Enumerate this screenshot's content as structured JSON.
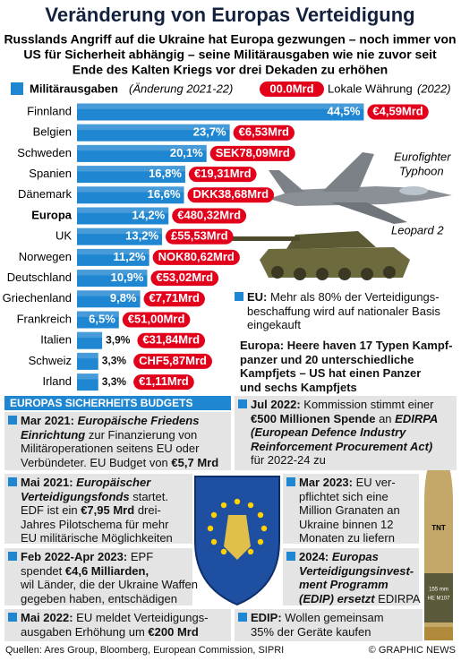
{
  "title": "Veränderung von Europas Verteidigung",
  "subtitle": [
    "Russlands Angriff auf die Ukraine hat Europa gezwungen – noch immer von",
    "US  für Sicherheit abhängig – seine Militärausgaben wie nie zuvor seit",
    "Ende des Kalten Kriegs vor drei Dekaden zu erhöhen"
  ],
  "chart_data": {
    "type": "bar",
    "orientation": "horizontal",
    "color": "#1f86d1",
    "highlight_color": "#e3001b",
    "legend": {
      "label": "Militärausgaben",
      "note": "(Änderung 2021-22)",
      "currency_sample": "00.0Mrd",
      "currency_label": "Lokale Währung",
      "currency_note": "(2022)"
    },
    "categories": [
      "Finnland",
      "Belgien",
      "Schweden",
      "Spanien",
      "Dänemark",
      "Europa",
      "UK",
      "Norwegen",
      "Deutschland",
      "Griechenland",
      "Frankreich",
      "Italien",
      "Schweiz",
      "Irland"
    ],
    "values": [
      44.5,
      23.7,
      20.1,
      16.8,
      16.6,
      14.2,
      13.2,
      11.2,
      10.9,
      9.8,
      6.5,
      3.9,
      3.3,
      3.3
    ],
    "value_labels": [
      "44,5%",
      "23,7%",
      "20,1%",
      "16,8%",
      "16,6%",
      "14,2%",
      "13,2%",
      "11,2%",
      "10,9%",
      "9,8%",
      "6,5%",
      "3,9%",
      "3,3%",
      "3,3%"
    ],
    "local_currency": [
      "€4,59Mrd",
      "€6,53Mrd",
      "SEK78,09Mrd",
      "€19,31Mrd",
      "DKK38,68Mrd",
      "€480,32Mrd",
      "£55,53Mrd",
      "NOK80,62Mrd",
      "€53,02Mrd",
      "€7,71Mrd",
      "€51,00Mrd",
      "€31,84Mrd",
      "CHF5,87Mrd",
      "€1,11Mrd"
    ]
  },
  "images": {
    "jet": [
      "Eurofighter",
      "Typhoon"
    ],
    "tank": "Leopard 2"
  },
  "notes": [
    {
      "lines": [
        [
          "EU:",
          "Mehr als 80% der Verteidigungs-"
        ],
        [
          "beschaffung wird auf nationaler Basis"
        ],
        [
          "eingekauft"
        ]
      ]
    },
    {
      "lines": [
        [
          "Europa: Heere haven 17 Typen Kampf-"
        ],
        [
          "panzer und 20 unterschiedliche"
        ],
        [
          "Kampfjets – US hat einen Panzer"
        ],
        [
          "und sechs Kampfjets"
        ]
      ]
    }
  ],
  "section_title": "EUROPAS SICHERHEITS BUDGETS",
  "events": [
    {
      "lines": [
        [
          "Mar 2021:",
          "Europäische Friedens"
        ],
        [
          "Einrichtung",
          "zur Finanzierung von"
        ],
        [
          "Militäroperationen seitens EU oder"
        ],
        [
          "Verbündeter. EU Budget von",
          "€5,7 Mrd"
        ]
      ]
    },
    {
      "lines": [
        [
          "Jul 2022:",
          "Kommission stimmt einer"
        ],
        [
          "€500 Millionen Spende",
          "an",
          "EDIRPA"
        ],
        [
          "(European Defence Industry"
        ],
        [
          "Reinforcement Procurement Act)"
        ],
        [
          "für 2022-24 zu"
        ]
      ]
    },
    {
      "lines": [
        [
          "Mai 2021:",
          "Europäischer"
        ],
        [
          "Verteidigungsfonds",
          "startet."
        ],
        [
          "EDF ist ein",
          "€7,95 Mrd",
          "drei-"
        ],
        [
          "Jahres Pilotschema für mehr"
        ],
        [
          "EU militärische Möglichkeiten"
        ]
      ]
    },
    {
      "lines": [
        [
          "Mar 2023:",
          "EU ver-"
        ],
        [
          "pflichtet sich eine"
        ],
        [
          "Million Granaten an"
        ],
        [
          "Ukraine binnen 12"
        ],
        [
          "Monaten zu liefern"
        ]
      ]
    },
    {
      "lines": [
        [
          "Feb 2022-Apr 2023:",
          "EPF"
        ],
        [
          "spendet",
          "€4,6 Milliarden,"
        ],
        [
          "wil Länder, die der Ukraine Waffen"
        ],
        [
          "gegeben haben, entschädigen"
        ]
      ]
    },
    {
      "lines": [
        [
          "2024:",
          "Europas"
        ],
        [
          "Verteidigungsinvest-"
        ],
        [
          "ment Programm"
        ],
        [
          "(EDIP) ersetzt",
          "EDIRPA"
        ]
      ]
    },
    {
      "lines": [
        [
          "Mai 2022:",
          "EU meldet Verteidigungs-"
        ],
        [
          "ausgaben Erhöhung um",
          "€200 Mrd"
        ]
      ]
    },
    {
      "lines": [
        [
          "EDIP:",
          "Wollen gemeinsam"
        ],
        [
          "35% der Geräte kaufen"
        ]
      ]
    }
  ],
  "shell_text": [
    "TNT",
    "155 mm",
    "HE M107"
  ],
  "footer": {
    "source": "Quellen: Ares Group, Bloomberg, European Commission, SIPRI",
    "credit": "© GRAPHIC NEWS"
  }
}
